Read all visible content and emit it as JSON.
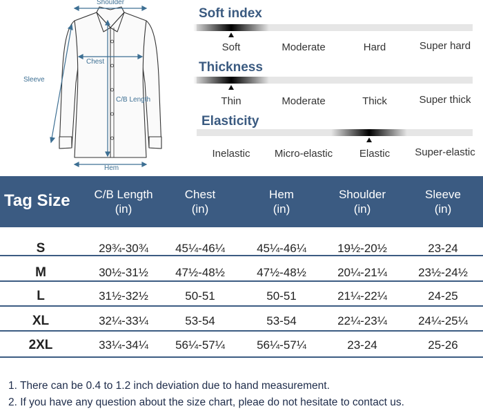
{
  "diagram": {
    "labels": {
      "shoulder": "Shoulder",
      "chest": "Chest",
      "sleeve": "Sleeve",
      "cb_length": "C/B Length",
      "hem": "Hem"
    },
    "line_color": "#3d6f93"
  },
  "properties": [
    {
      "title": "Soft index",
      "options": [
        "Soft",
        "Moderate",
        "Hard",
        "Super hard"
      ],
      "selected_index": 0
    },
    {
      "title": "Thickness",
      "options": [
        "Thin",
        "Moderate",
        "Thick",
        "Super thick"
      ],
      "selected_index": 0
    },
    {
      "title": "Elasticity",
      "options": [
        "Inelastic",
        "Micro-elastic",
        "Elastic",
        "Super-elastic"
      ],
      "selected_index": 2
    }
  ],
  "size_table": {
    "header_color": "#3b5b82",
    "columns": [
      {
        "label": "Tag Size",
        "unit": ""
      },
      {
        "label": "C/B Length",
        "unit": "(in)"
      },
      {
        "label": "Chest",
        "unit": "(in)"
      },
      {
        "label": "Hem",
        "unit": "(in)"
      },
      {
        "label": "Shoulder",
        "unit": "(in)"
      },
      {
        "label": "Sleeve",
        "unit": "(in)"
      }
    ],
    "rows": [
      [
        "S",
        "29¾-30¾",
        "45¼-46¼",
        "45¼-46¼",
        "19½-20½",
        "23-24"
      ],
      [
        "M",
        "30½-31½",
        "47½-48½",
        "47½-48½",
        "20¼-21¼",
        "23½-24½"
      ],
      [
        "L",
        "31½-32½",
        "50-51",
        "50-51",
        "21¼-22¼",
        "24-25"
      ],
      [
        "XL",
        "32¼-33¼",
        "53-54",
        "53-54",
        "22¼-23¼",
        "24¼-25¼"
      ],
      [
        "2XL",
        "33¼-34¼",
        "56¼-57¼",
        "56¼-57¼",
        "23-24",
        "25-26"
      ]
    ]
  },
  "notes": [
    "1. There can be 0.4 to 1.2 inch deviation due to hand measurement.",
    "2. If you have any question about the size chart, pleae do not hesitate to contact us."
  ]
}
